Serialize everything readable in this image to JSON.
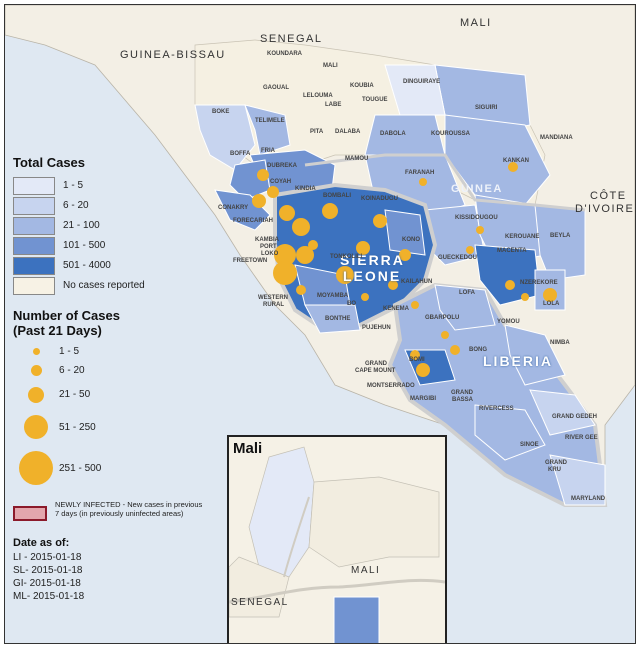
{
  "legend": {
    "total_cases_title": "Total Cases",
    "total_cases": [
      {
        "label": "1 - 5",
        "color": "#e3e9f7"
      },
      {
        "label": "6 - 20",
        "color": "#c7d4ef"
      },
      {
        "label": "21 - 100",
        "color": "#a3b8e3"
      },
      {
        "label": "101 - 500",
        "color": "#7193d1"
      },
      {
        "label": "501 - 4000",
        "color": "#3c72bf"
      },
      {
        "label": "No cases reported",
        "color": "#f7f2e5"
      }
    ],
    "number_title_line1": "Number of Cases",
    "number_title_line2": "(Past 21 Days)",
    "number_cases": [
      {
        "label": "1 - 5"
      },
      {
        "label": "6 - 20"
      },
      {
        "label": "21 - 50"
      },
      {
        "label": "51 - 250"
      },
      {
        "label": "251 - 500"
      }
    ],
    "circle_color": "#f0b12a",
    "newly_infected": "NEWLY INFECTED - New cases in previous 7 days (in previously uninfected areas)",
    "newly_color": "#e3a6ad",
    "date_title": "Date as of:",
    "dates": [
      "LI - 2015-01-18",
      "SL- 2015-01-18",
      "GI- 2015-01-18",
      "ML- 2015-01-18"
    ]
  },
  "map": {
    "countries": {
      "mali_top": "MALI",
      "senegal": "SENEGAL",
      "guinea_bissau": "GUINEA-BISSAU",
      "guinea": "GUINEA",
      "cote_divoire_1": "CÔTE",
      "cote_divoire_2": "D'IVOIRE",
      "sierra_1": "SIERRA",
      "sierra_2": "LEONE",
      "liberia": "LIBERIA"
    },
    "districts": {
      "koundara": "KOUNDARA",
      "mali_pref": "MALI",
      "koubia": "KOUBIA",
      "dinguiraye": "DINGUIRAYE",
      "gaoual": "GAOUAL",
      "lelouma": "LELOUMA",
      "labe": "LABE",
      "tougue": "TOUGUE",
      "siguiri": "SIGUIRI",
      "boke": "BOKE",
      "telimele": "TELIMELE",
      "pita": "PITA",
      "dalaba": "DALABA",
      "dabola": "DABOLA",
      "kouroussa": "KOUROUSSA",
      "mandiana": "MANDIANA",
      "boffa": "BOFFA",
      "fria": "FRIA",
      "mamou": "MAMOU",
      "kankan": "KANKAN",
      "dubreka": "DUBREKA",
      "coyah": "COYAH",
      "kindia": "KINDIA",
      "faranah": "FARANAH",
      "conakry": "CONAKRY",
      "forecariah": "FORECARIAH",
      "koinadugu": "KOINADUGU",
      "bombali": "BOMBALI",
      "kissidougou": "KISSIDOUGOU",
      "kerouane": "KEROUANE",
      "beyla": "BEYLA",
      "kambia": "KAMBIA",
      "port_loko": "PORT",
      "port_loko2": "LOKO",
      "tonkolili": "TONKOLILI",
      "kono": "KONO",
      "freetown": "FREETOWN",
      "gueckedou": "GUECKEDOU",
      "macenta": "MACENTA",
      "nzerekore": "NZEREKORE",
      "kailahun": "KAILAHUN",
      "lofa": "LOFA",
      "lola": "LOLA",
      "western_rural_1": "WESTERN",
      "western_rural_2": "RURAL",
      "moyamba": "MOYAMBA",
      "bo": "BO",
      "kenema": "KENEMA",
      "bonthe": "BONTHE",
      "pujehun": "PUJEHUN",
      "gbarpolu": "GBARPOLU",
      "yomou": "YOMOU",
      "nimba": "NIMBA",
      "bong": "BONG",
      "bomi": "BOMI",
      "grand_cape_mount_1": "GRAND",
      "grand_cape_mount_2": "CAPE MOUNT",
      "montserrado": "MONTSERRADO",
      "margibi": "MARGIBI",
      "grand_bassa_1": "GRAND",
      "grand_bassa_2": "BASSA",
      "rivercess": "RIVERCESS",
      "grand_gedeh": "GRAND GEDEH",
      "sinoe": "SINOE",
      "river_gee": "RIVER GEE",
      "grand_kru_1": "GRAND",
      "grand_kru_2": "KRU",
      "maryland": "MARYLAND"
    }
  },
  "inset": {
    "title": "Mali",
    "senegal": "SENEGAL",
    "mali": "MALI"
  }
}
